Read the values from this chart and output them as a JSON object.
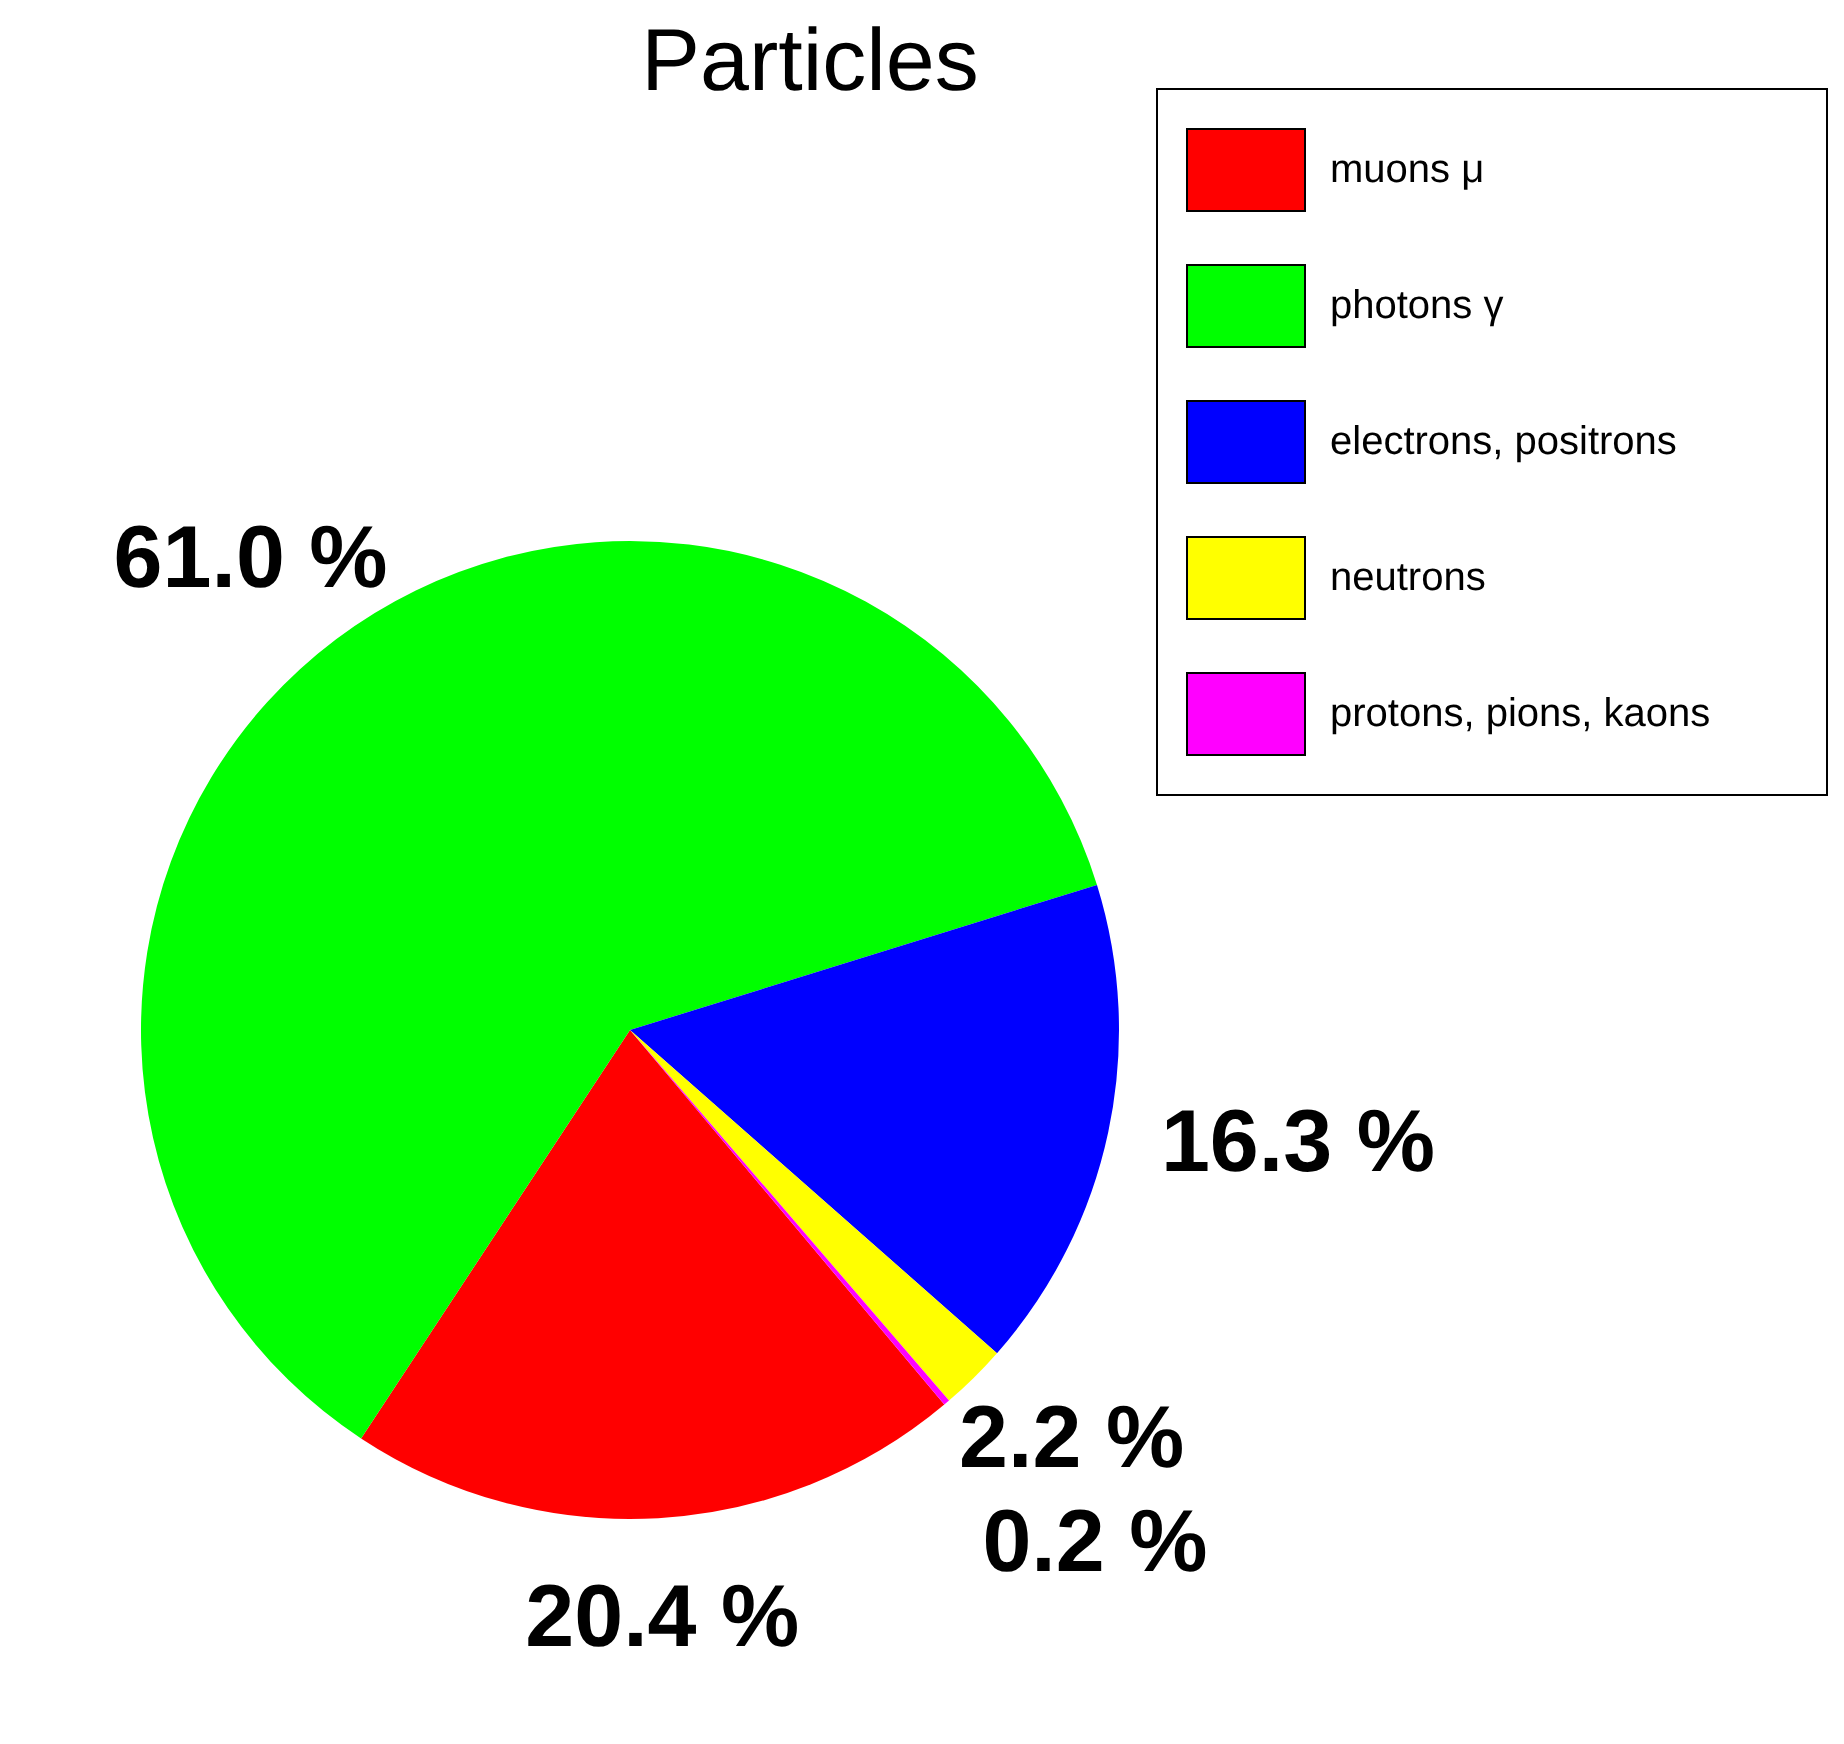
{
  "chart_data": {
    "type": "pie",
    "title": "Particles",
    "categories": [
      "muons μ",
      "photons γ",
      "electrons, positrons",
      "neutrons",
      "protons, pions, kaons"
    ],
    "values": [
      20.4,
      61.0,
      16.3,
      2.2,
      0.2
    ],
    "colors": [
      "#ff0000",
      "#00ff00",
      "#0000ff",
      "#ffff00",
      "#ff00ff"
    ],
    "value_labels": [
      "20.4 %",
      "61.0 %",
      "16.3 %",
      "2.2 %",
      "0.2 %"
    ],
    "legend": "top right"
  }
}
